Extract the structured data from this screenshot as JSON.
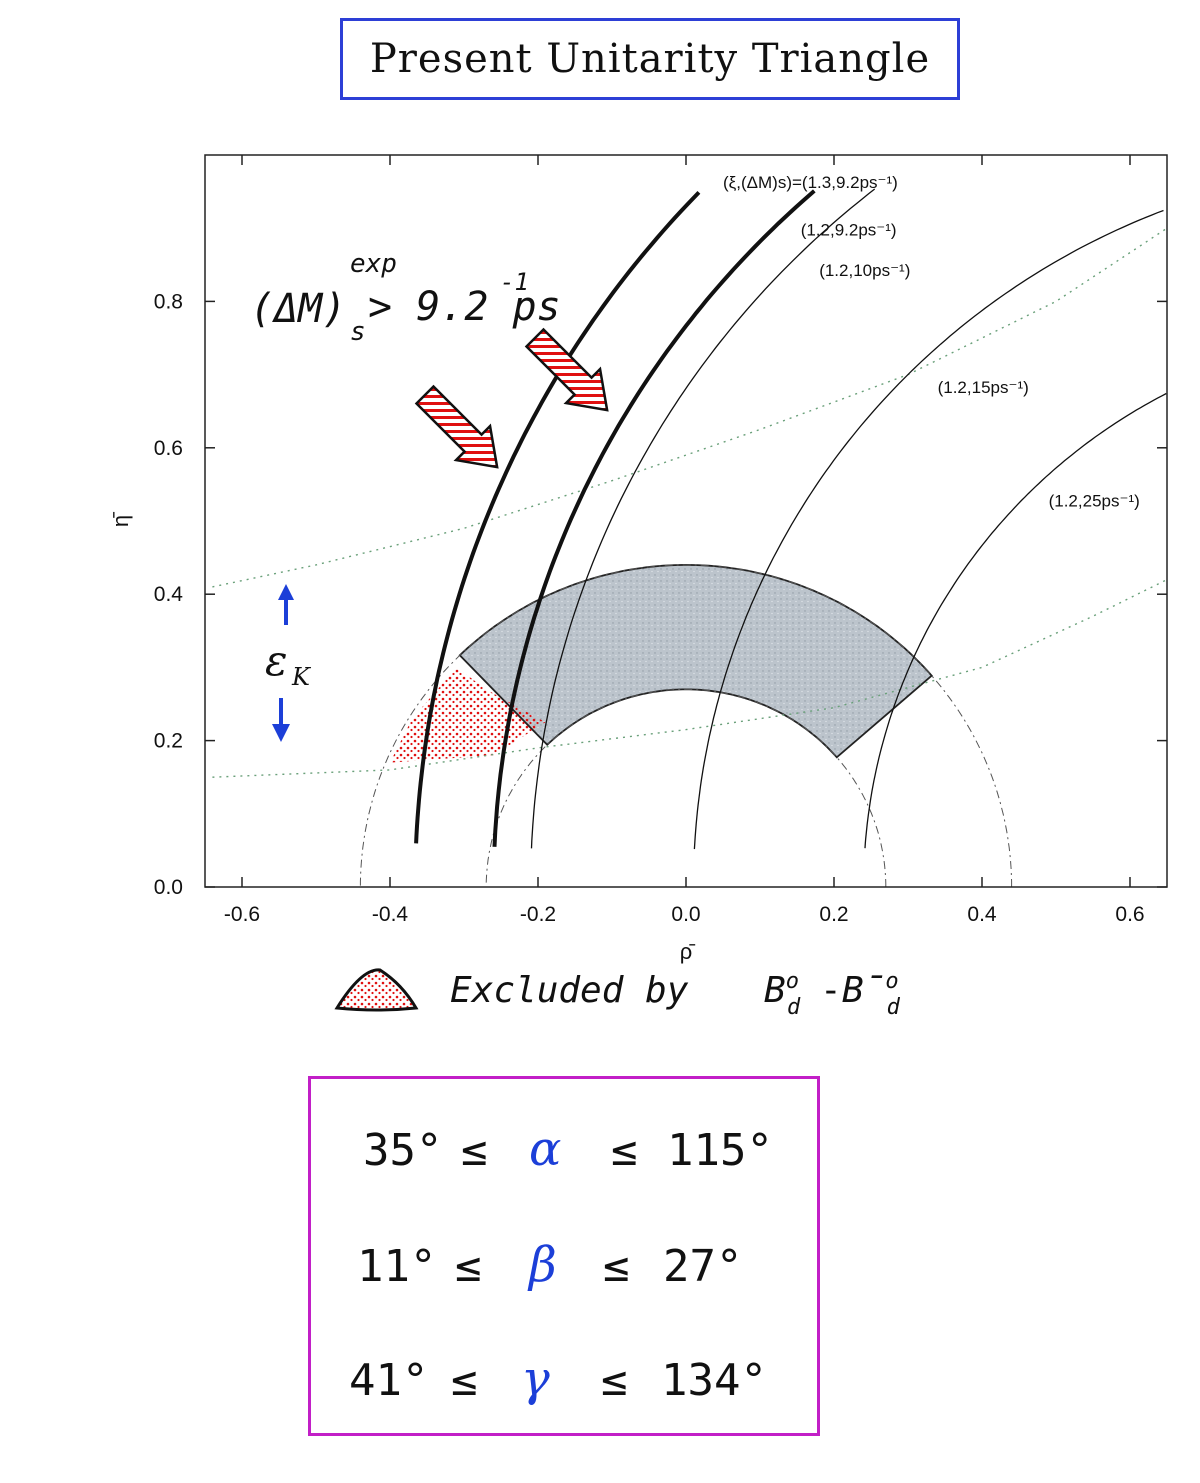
{
  "title": "Present Unitarity Triangle",
  "chart_data": {
    "type": "contour",
    "xlabel": "ρ̄",
    "ylabel": "η̄",
    "xlim": [
      -0.65,
      0.65
    ],
    "ylim": [
      0.0,
      1.0
    ],
    "xticks": [
      "-0.6",
      "-0.4",
      "-0.2",
      "0.0",
      "0.2",
      "0.4",
      "0.6"
    ],
    "xtick_values": [
      -0.6,
      -0.4,
      -0.2,
      0.0,
      0.2,
      0.4,
      0.6
    ],
    "yticks": [
      "0.0",
      "0.2",
      "0.4",
      "0.6",
      "0.8"
    ],
    "ytick_values": [
      0.0,
      0.2,
      0.4,
      0.6,
      0.8
    ],
    "circle_center": [
      1.0,
      0.0
    ],
    "dm_contours": [
      {
        "label": "(ξ,(ΔM)s)=(1.3,9.2ps⁻¹)",
        "radius": 1.366,
        "bold": true,
        "label_x": 0.05,
        "label_y": 0.955
      },
      {
        "label": "(1.2,9.2ps⁻¹)",
        "radius": 1.26,
        "bold": true,
        "label_x": 0.155,
        "label_y": 0.89
      },
      {
        "label": "(1.2,10ps⁻¹)",
        "radius": 1.21,
        "bold": false,
        "label_x": 0.18,
        "label_y": 0.835
      },
      {
        "label": "(1.2,15ps⁻¹)",
        "radius": 0.99,
        "bold": false,
        "label_x": 0.34,
        "label_y": 0.675
      },
      {
        "label": "(1.2,25ps⁻¹)",
        "radius": 0.76,
        "bold": false,
        "label_x": 0.49,
        "label_y": 0.52
      }
    ],
    "vub_circles": [
      0.27,
      0.44
    ],
    "epsilon_k_bands": [
      {
        "points": [
          [
            -0.64,
            0.41
          ],
          [
            -0.5,
            0.44
          ],
          [
            -0.3,
            0.49
          ],
          [
            -0.1,
            0.555
          ],
          [
            0.1,
            0.625
          ],
          [
            0.3,
            0.7
          ],
          [
            0.5,
            0.8
          ],
          [
            0.65,
            0.9
          ]
        ]
      },
      {
        "points": [
          [
            -0.64,
            0.15
          ],
          [
            -0.4,
            0.16
          ],
          [
            -0.2,
            0.19
          ],
          [
            0.0,
            0.215
          ],
          [
            0.2,
            0.245
          ],
          [
            0.4,
            0.3
          ],
          [
            0.55,
            0.37
          ],
          [
            0.65,
            0.42
          ]
        ]
      }
    ],
    "allowed_region": {
      "center": [
        0,
        0
      ],
      "r_inner": 0.27,
      "r_outer": 0.44,
      "theta_start_deg": 41,
      "theta_end_deg": 134
    },
    "excluded_region": [
      [
        -0.31,
        0.3
      ],
      [
        -0.27,
        0.27
      ],
      [
        -0.19,
        0.225
      ],
      [
        -0.26,
        0.18
      ],
      [
        -0.4,
        0.17
      ],
      [
        -0.37,
        0.23
      ]
    ],
    "colors": {
      "allowed_fill": "#bcc4cc",
      "excluded": "#e01010",
      "arrow_stripe": "#e01010",
      "blue": "#1c3fd8"
    }
  },
  "annotations": {
    "dms_main": "(ΔM)",
    "dms_sub": "s",
    "dms_sup": "exp",
    "dms_rhs": "> 9.2 ps",
    "dms_rhs_sup": "-1",
    "epsilon_label": "ε",
    "epsilon_sub": "K"
  },
  "legend": {
    "excluded_text": "Excluded by",
    "meson_a": "B",
    "meson_a_sup": "o",
    "meson_a_sub": "d",
    "dash": "-",
    "meson_b": "B̄",
    "meson_b_sup": "o",
    "meson_b_sub": "d"
  },
  "angles": [
    {
      "lower": "35°",
      "le": "≤",
      "symbol": "α",
      "upper": "115°"
    },
    {
      "lower": "11°",
      "le": "≤",
      "symbol": "β",
      "upper": "27°"
    },
    {
      "lower": "41°",
      "le": "≤",
      "symbol": "γ",
      "upper": "134°"
    }
  ]
}
